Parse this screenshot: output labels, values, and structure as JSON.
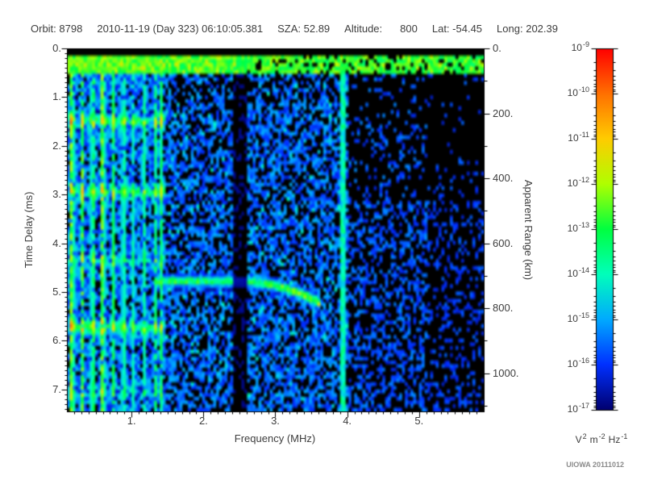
{
  "header": {
    "orbit_label": "Orbit:",
    "orbit_value": "8798",
    "datetime": "2010-11-19 (Day 323) 06:10:05.381",
    "sza_label": "SZA:",
    "sza_value": "52.89",
    "altitude_label": "Altitude:",
    "altitude_value": "800",
    "lat_label": "Lat:",
    "lat_value": "-54.45",
    "long_label": "Long:",
    "long_value": "202.39"
  },
  "credit": "UIOWA 20111012",
  "chart_data": {
    "type": "heatmap",
    "title": "",
    "xlabel": "Frequency (MHz)",
    "ylabel_left": "Time Delay (ms)",
    "ylabel_right": "Apparent Range (km)",
    "xlim": [
      0.1,
      5.9
    ],
    "ylim_ms": [
      0,
      7.45
    ],
    "range_km_per_ms": 150,
    "x_ticks": {
      "values": [
        1,
        2,
        3,
        4,
        5
      ],
      "labels": [
        "1.",
        "2.",
        "3.",
        "4.",
        "5."
      ],
      "minor_step": 0.1
    },
    "y_ticks_left": {
      "values": [
        0,
        1,
        2,
        3,
        4,
        5,
        6,
        7
      ],
      "labels": [
        "0.",
        "1.",
        "2.",
        "3.",
        "4.",
        "5.",
        "6.",
        "7."
      ],
      "minor_step": 0.1
    },
    "y_ticks_right": {
      "values": [
        0,
        200,
        400,
        600,
        800,
        1000
      ],
      "labels": [
        "0.",
        "200.",
        "400.",
        "600.",
        "800.",
        "1000."
      ],
      "minor_step": 100
    },
    "colorbar": {
      "base": "10",
      "exponents": [
        "-9",
        "-10",
        "-11",
        "-12",
        "-13",
        "-14",
        "-15",
        "-16",
        "-17"
      ],
      "value_range_exponents": [
        -17,
        -9
      ],
      "units_parts": [
        {
          "base": "V",
          "sup": "2"
        },
        {
          "base": "m",
          "sup": "-2"
        },
        {
          "base": "Hz",
          "sup": "-1"
        }
      ],
      "stops": [
        [
          0,
          "#000070"
        ],
        [
          0.125,
          "#0030ff"
        ],
        [
          0.25,
          "#00aaff"
        ],
        [
          0.375,
          "#00ffbb"
        ],
        [
          0.5,
          "#00ff40"
        ],
        [
          0.625,
          "#b0ff00"
        ],
        [
          0.75,
          "#ffcc00"
        ],
        [
          0.875,
          "#ff7000"
        ],
        [
          1,
          "#ff0000"
        ]
      ]
    },
    "features": {
      "seed": 20111012,
      "top_noise_band_ms": [
        0.16,
        0.5
      ],
      "plasma_harmonic_stripes": [
        [
          0.17,
          0.95
        ],
        [
          0.315,
          0.75
        ],
        [
          0.46,
          0.7
        ],
        [
          0.6,
          0.9
        ],
        [
          0.745,
          0.6
        ],
        [
          0.89,
          0.55
        ],
        [
          1.035,
          0.5
        ],
        [
          1.18,
          0.48
        ],
        [
          1.325,
          0.58
        ],
        [
          1.42,
          0.6
        ]
      ],
      "cyclotron_echo_bands_ms": [
        [
          1.5,
          0.9
        ],
        [
          2.95,
          0.8
        ],
        [
          4.35,
          0.4
        ],
        [
          5.72,
          0.85
        ],
        [
          7.05,
          0.3
        ]
      ],
      "ionosphere_echo_trace": {
        "f_start": 1.32,
        "f_end": 3.62,
        "delay_ms": 4.78,
        "cusp_extra_ms": 0.45,
        "cusp_from_mhz": 2.5
      },
      "receiver_gap_mhz": [
        2.4,
        2.62
      ],
      "interference_line_mhz": 3.95,
      "background_colors": {
        "plot_bg": "#000000",
        "frame": "#000000",
        "text": "#3d3d3d"
      }
    }
  }
}
